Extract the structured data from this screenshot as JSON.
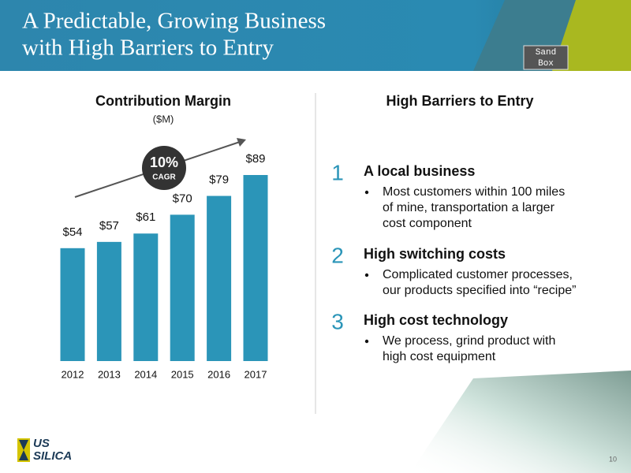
{
  "header": {
    "title_lines": [
      "A Predictable, Growing Business",
      "with High Barriers to Entry"
    ],
    "logo_lines": [
      "Sand",
      "Box"
    ]
  },
  "chart_data": {
    "type": "bar",
    "title": "Contribution Margin",
    "subtitle": "($M)",
    "categories": [
      "2012",
      "2013",
      "2014",
      "2015",
      "2016",
      "2017"
    ],
    "values": [
      54,
      57,
      61,
      70,
      79,
      89
    ],
    "value_labels": [
      "$54",
      "$57",
      "$61",
      "$70",
      "$79",
      "$89"
    ],
    "color": "#2b95b8",
    "annotation_lines": [
      "10%",
      "CAGR"
    ]
  },
  "barriers": {
    "title": "High Barriers to Entry",
    "items": [
      {
        "number": "1",
        "heading": "A local business",
        "bullet_lines": [
          "Most customers within 100 miles",
          "of mine, transportation a larger",
          "cost component"
        ]
      },
      {
        "number": "2",
        "heading": "High switching costs",
        "bullet_lines": [
          "Complicated customer processes,",
          "our products specified into “recipe”"
        ]
      },
      {
        "number": "3",
        "heading": "High cost technology",
        "bullet_lines": [
          "We process, grind product with",
          "high cost equipment"
        ]
      }
    ]
  },
  "footer": {
    "logo_lines": [
      "US",
      "SILICA"
    ],
    "page_number": "10"
  }
}
